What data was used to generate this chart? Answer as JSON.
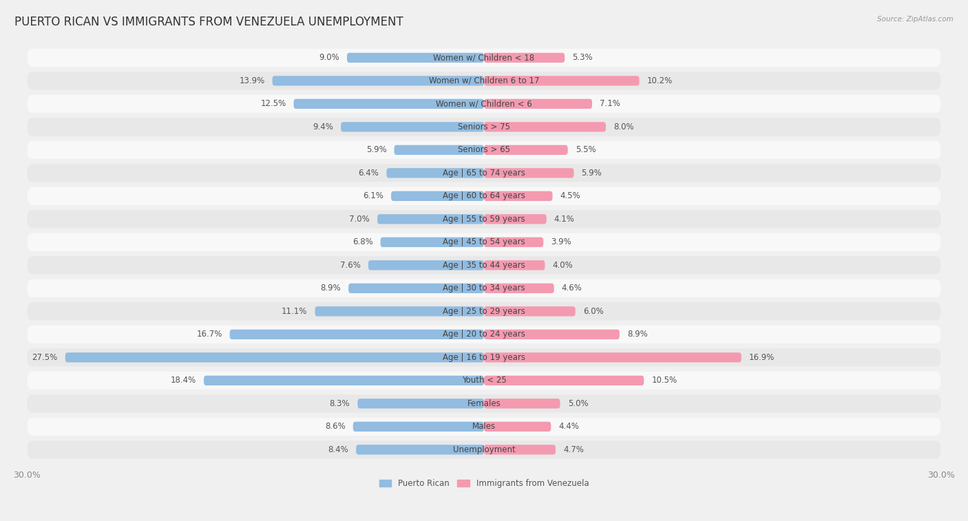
{
  "title": "PUERTO RICAN VS IMMIGRANTS FROM VENEZUELA UNEMPLOYMENT",
  "source": "Source: ZipAtlas.com",
  "categories": [
    "Unemployment",
    "Males",
    "Females",
    "Youth < 25",
    "Age | 16 to 19 years",
    "Age | 20 to 24 years",
    "Age | 25 to 29 years",
    "Age | 30 to 34 years",
    "Age | 35 to 44 years",
    "Age | 45 to 54 years",
    "Age | 55 to 59 years",
    "Age | 60 to 64 years",
    "Age | 65 to 74 years",
    "Seniors > 65",
    "Seniors > 75",
    "Women w/ Children < 6",
    "Women w/ Children 6 to 17",
    "Women w/ Children < 18"
  ],
  "left_values": [
    8.4,
    8.6,
    8.3,
    18.4,
    27.5,
    16.7,
    11.1,
    8.9,
    7.6,
    6.8,
    7.0,
    6.1,
    6.4,
    5.9,
    9.4,
    12.5,
    13.9,
    9.0
  ],
  "right_values": [
    4.7,
    4.4,
    5.0,
    10.5,
    16.9,
    8.9,
    6.0,
    4.6,
    4.0,
    3.9,
    4.1,
    4.5,
    5.9,
    5.5,
    8.0,
    7.1,
    10.2,
    5.3
  ],
  "left_color": "#92bce0",
  "right_color": "#f49ab0",
  "left_label": "Puerto Rican",
  "right_label": "Immigrants from Venezuela",
  "max_val": 30.0,
  "bg_color": "#f0f0f0",
  "row_bg_odd": "#e8e8e8",
  "row_bg_even": "#f8f8f8",
  "title_fontsize": 12,
  "cat_fontsize": 8.5,
  "value_fontsize": 8.5,
  "axis_label_fontsize": 9
}
